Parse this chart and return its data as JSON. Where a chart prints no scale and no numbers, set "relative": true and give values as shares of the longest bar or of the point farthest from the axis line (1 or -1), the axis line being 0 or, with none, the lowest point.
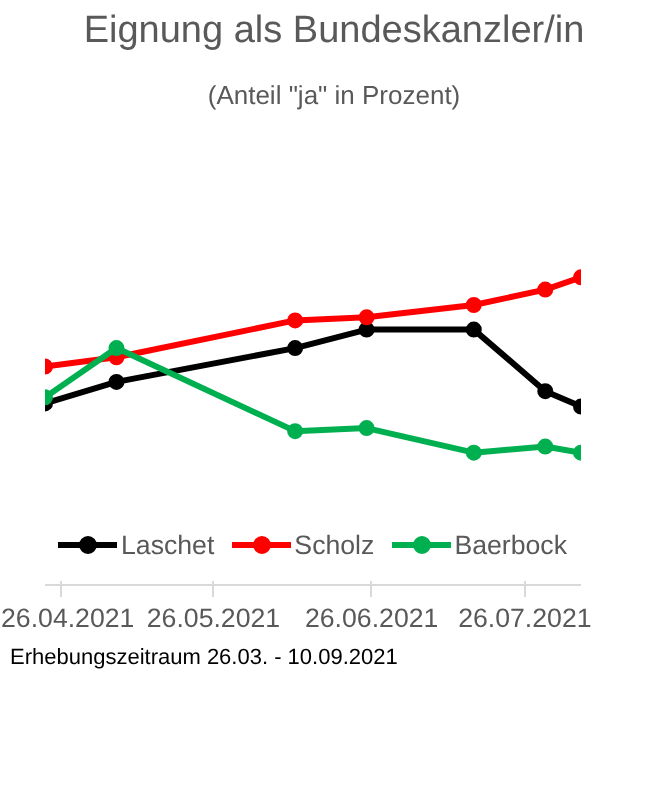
{
  "chart_data": {
    "type": "line",
    "title": "Eignung als Bundeskanzler/in",
    "subtitle": "(Anteil \"ja\" in Prozent)",
    "x": [
      "2021-04-23",
      "2021-05-07",
      "2021-06-11",
      "2021-06-25",
      "2021-07-16",
      "2021-07-30",
      "2021-08-06"
    ],
    "xlim": [
      "2021-04-23",
      "2021-08-06"
    ],
    "xticks": [
      {
        "value": "2021-04-26",
        "label": "26.04.2021"
      },
      {
        "value": "2021-05-26",
        "label": "26.05.2021"
      },
      {
        "value": "2021-06-26",
        "label": "26.06.2021"
      },
      {
        "value": "2021-07-26",
        "label": "26.07.2021"
      }
    ],
    "relative": true,
    "series": [
      {
        "name": "Laschet",
        "color": "#000000",
        "values": [
          0.59,
          0.66,
          0.77,
          0.83,
          0.83,
          0.63,
          0.58
        ]
      },
      {
        "name": "Scholz",
        "color": "#ff0000",
        "values": [
          0.71,
          0.74,
          0.86,
          0.87,
          0.91,
          0.96,
          1.0
        ]
      },
      {
        "name": "Baerbock",
        "color": "#00b050",
        "values": [
          0.61,
          0.77,
          0.5,
          0.51,
          0.43,
          0.45,
          0.43
        ]
      }
    ],
    "marker": "circle",
    "line_style": "solid",
    "legend": "bottom",
    "annotations": [
      "Erhebungszeitraum 26.03. - 10.09.2021"
    ]
  }
}
